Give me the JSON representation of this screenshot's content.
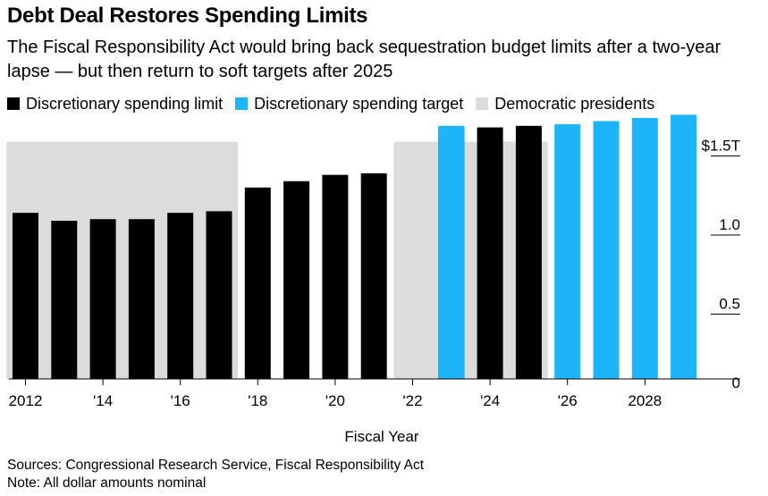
{
  "title": "Debt Deal Restores Spending Limits",
  "subtitle": "The Fiscal Responsibility Act would bring back sequestration budget limits after a two-year lapse — but then return to soft targets after 2025",
  "legend": [
    {
      "label": "Discretionary spending limit",
      "color": "#000000"
    },
    {
      "label": "Discretionary spending target",
      "color": "#1eb4fa"
    },
    {
      "label": "Democratic presidents",
      "color": "#dcdcdc"
    }
  ],
  "chart_data": {
    "type": "bar",
    "xlabel": "Fiscal Year",
    "ylabel": "",
    "ylim": [
      0,
      1.6
    ],
    "y_ticks": [
      {
        "value": 0,
        "label": "0"
      },
      {
        "value": 0.5,
        "label": "0.5"
      },
      {
        "value": 1.0,
        "label": "1.0"
      },
      {
        "value": 1.5,
        "label": "$1.5T"
      }
    ],
    "x_ticks": [
      {
        "year": 2012,
        "label": "2012"
      },
      {
        "year": 2014,
        "label": "'14"
      },
      {
        "year": 2016,
        "label": "'16"
      },
      {
        "year": 2018,
        "label": "'18"
      },
      {
        "year": 2020,
        "label": "'20"
      },
      {
        "year": 2022,
        "label": "'22"
      },
      {
        "year": 2024,
        "label": "'24"
      },
      {
        "year": 2026,
        "label": "'26"
      },
      {
        "year": 2028,
        "label": "2028"
      }
    ],
    "shaded_periods": [
      {
        "label": "Democratic presidents",
        "start": 2012,
        "end": 2017
      },
      {
        "label": "Democratic presidents",
        "start": 2022,
        "end": 2025
      }
    ],
    "series": [
      {
        "name": "Discretionary spending limit",
        "color": "#000000",
        "x": [
          2012,
          2013,
          2014,
          2015,
          2016,
          2017,
          2018,
          2019,
          2020,
          2021,
          2023,
          2024,
          2025
        ],
        "values": [
          1.05,
          1.0,
          1.01,
          1.01,
          1.05,
          1.06,
          1.21,
          1.25,
          1.29,
          1.3,
          1.59,
          1.59,
          1.6
        ]
      },
      {
        "name": "Discretionary spending target",
        "color": "#1eb4fa",
        "x": [
          2023,
          2026,
          2027,
          2028,
          2029
        ],
        "values": [
          1.6,
          1.61,
          1.63,
          1.65,
          1.67
        ]
      }
    ]
  },
  "footer": {
    "sources": "Sources: Congressional Research Service, Fiscal Responsibility Act",
    "note": "Note: All dollar amounts nominal"
  }
}
